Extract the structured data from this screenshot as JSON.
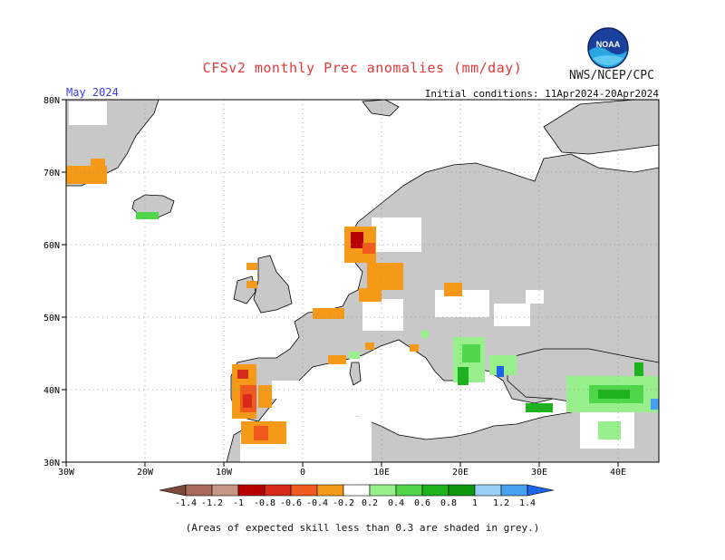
{
  "header": {
    "title": "CFSv2 monthly Prec anomalies (mm/day)",
    "agency": "NWS/NCEP/CPC",
    "logo_text": "NOAA",
    "month": "May 2024",
    "initial_conditions": "Initial conditions: 11Apr2024-20Apr2024"
  },
  "map": {
    "lat_labels": [
      "80N",
      "70N",
      "60N",
      "50N",
      "40N",
      "30N"
    ],
    "lon_labels": [
      "30W",
      "20W",
      "10W",
      "0",
      "10E",
      "20E",
      "30E",
      "40E"
    ],
    "colors": {
      "land_grey": "#c8c8c8",
      "ocean": "#ffffff",
      "coast": "#000000"
    }
  },
  "colorbar": {
    "labels": [
      "-1.4",
      "-1.2",
      "-1",
      "-0.8",
      "-0.6",
      "-0.4",
      "-0.2",
      "0.2",
      "0.4",
      "0.6",
      "0.8",
      "1",
      "1.2",
      "1.4"
    ],
    "colors": [
      "#7b4a3a",
      "#a86a5a",
      "#c79584",
      "#b80000",
      "#d82a1a",
      "#f05a1e",
      "#f59a18",
      "#ffffff",
      "#98f08c",
      "#4fd64a",
      "#1fb21f",
      "#0f970f",
      "#9ad0f5",
      "#4aa0f0",
      "#1f64e6"
    ]
  },
  "footnote": "(Areas of expected skill less than 0.3 are shaded in grey.)"
}
